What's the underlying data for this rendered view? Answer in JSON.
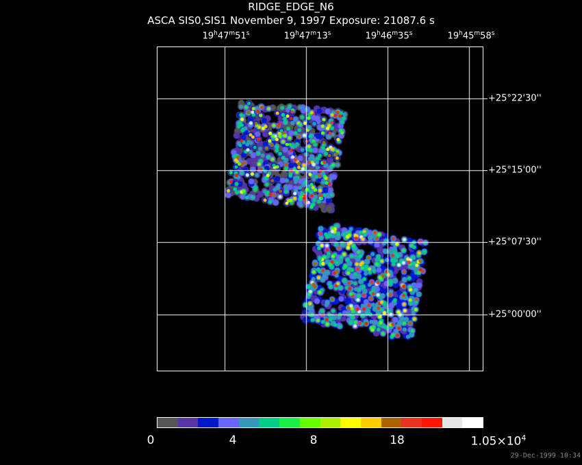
{
  "title": "RIDGE_EDGE_N6",
  "subtitle": "ASCA SIS0,SIS1 November 9, 1997 Exposure: 21087.6 s",
  "ra_labels": [
    {
      "h": "19",
      "m": "47",
      "s": "51"
    },
    {
      "h": "19",
      "m": "47",
      "s": "13"
    },
    {
      "h": "19",
      "m": "46",
      "s": "35"
    },
    {
      "h": "19",
      "m": "45",
      "s": "58"
    }
  ],
  "dec_labels": [
    "+25°22'30''",
    "+25°15'00''",
    "+25°07'30''",
    "+25°00'00''"
  ],
  "colorbar": {
    "colors": [
      "#555555",
      "#5533aa",
      "#0018cc",
      "#6666ff",
      "#3399bb",
      "#00cc88",
      "#18ee44",
      "#66ff00",
      "#aaee00",
      "#ffff00",
      "#ffcc00",
      "#b06000",
      "#e83320",
      "#ff1800",
      "#e6e6e6",
      "#ffffff"
    ],
    "labels": [
      {
        "text": "0"
      },
      {
        "text": "4"
      },
      {
        "text": "8"
      },
      {
        "text": "18"
      },
      {
        "text": "1.05×10",
        "sup": "4"
      }
    ]
  },
  "timestamp": "29-Dec-1999 10:34"
}
